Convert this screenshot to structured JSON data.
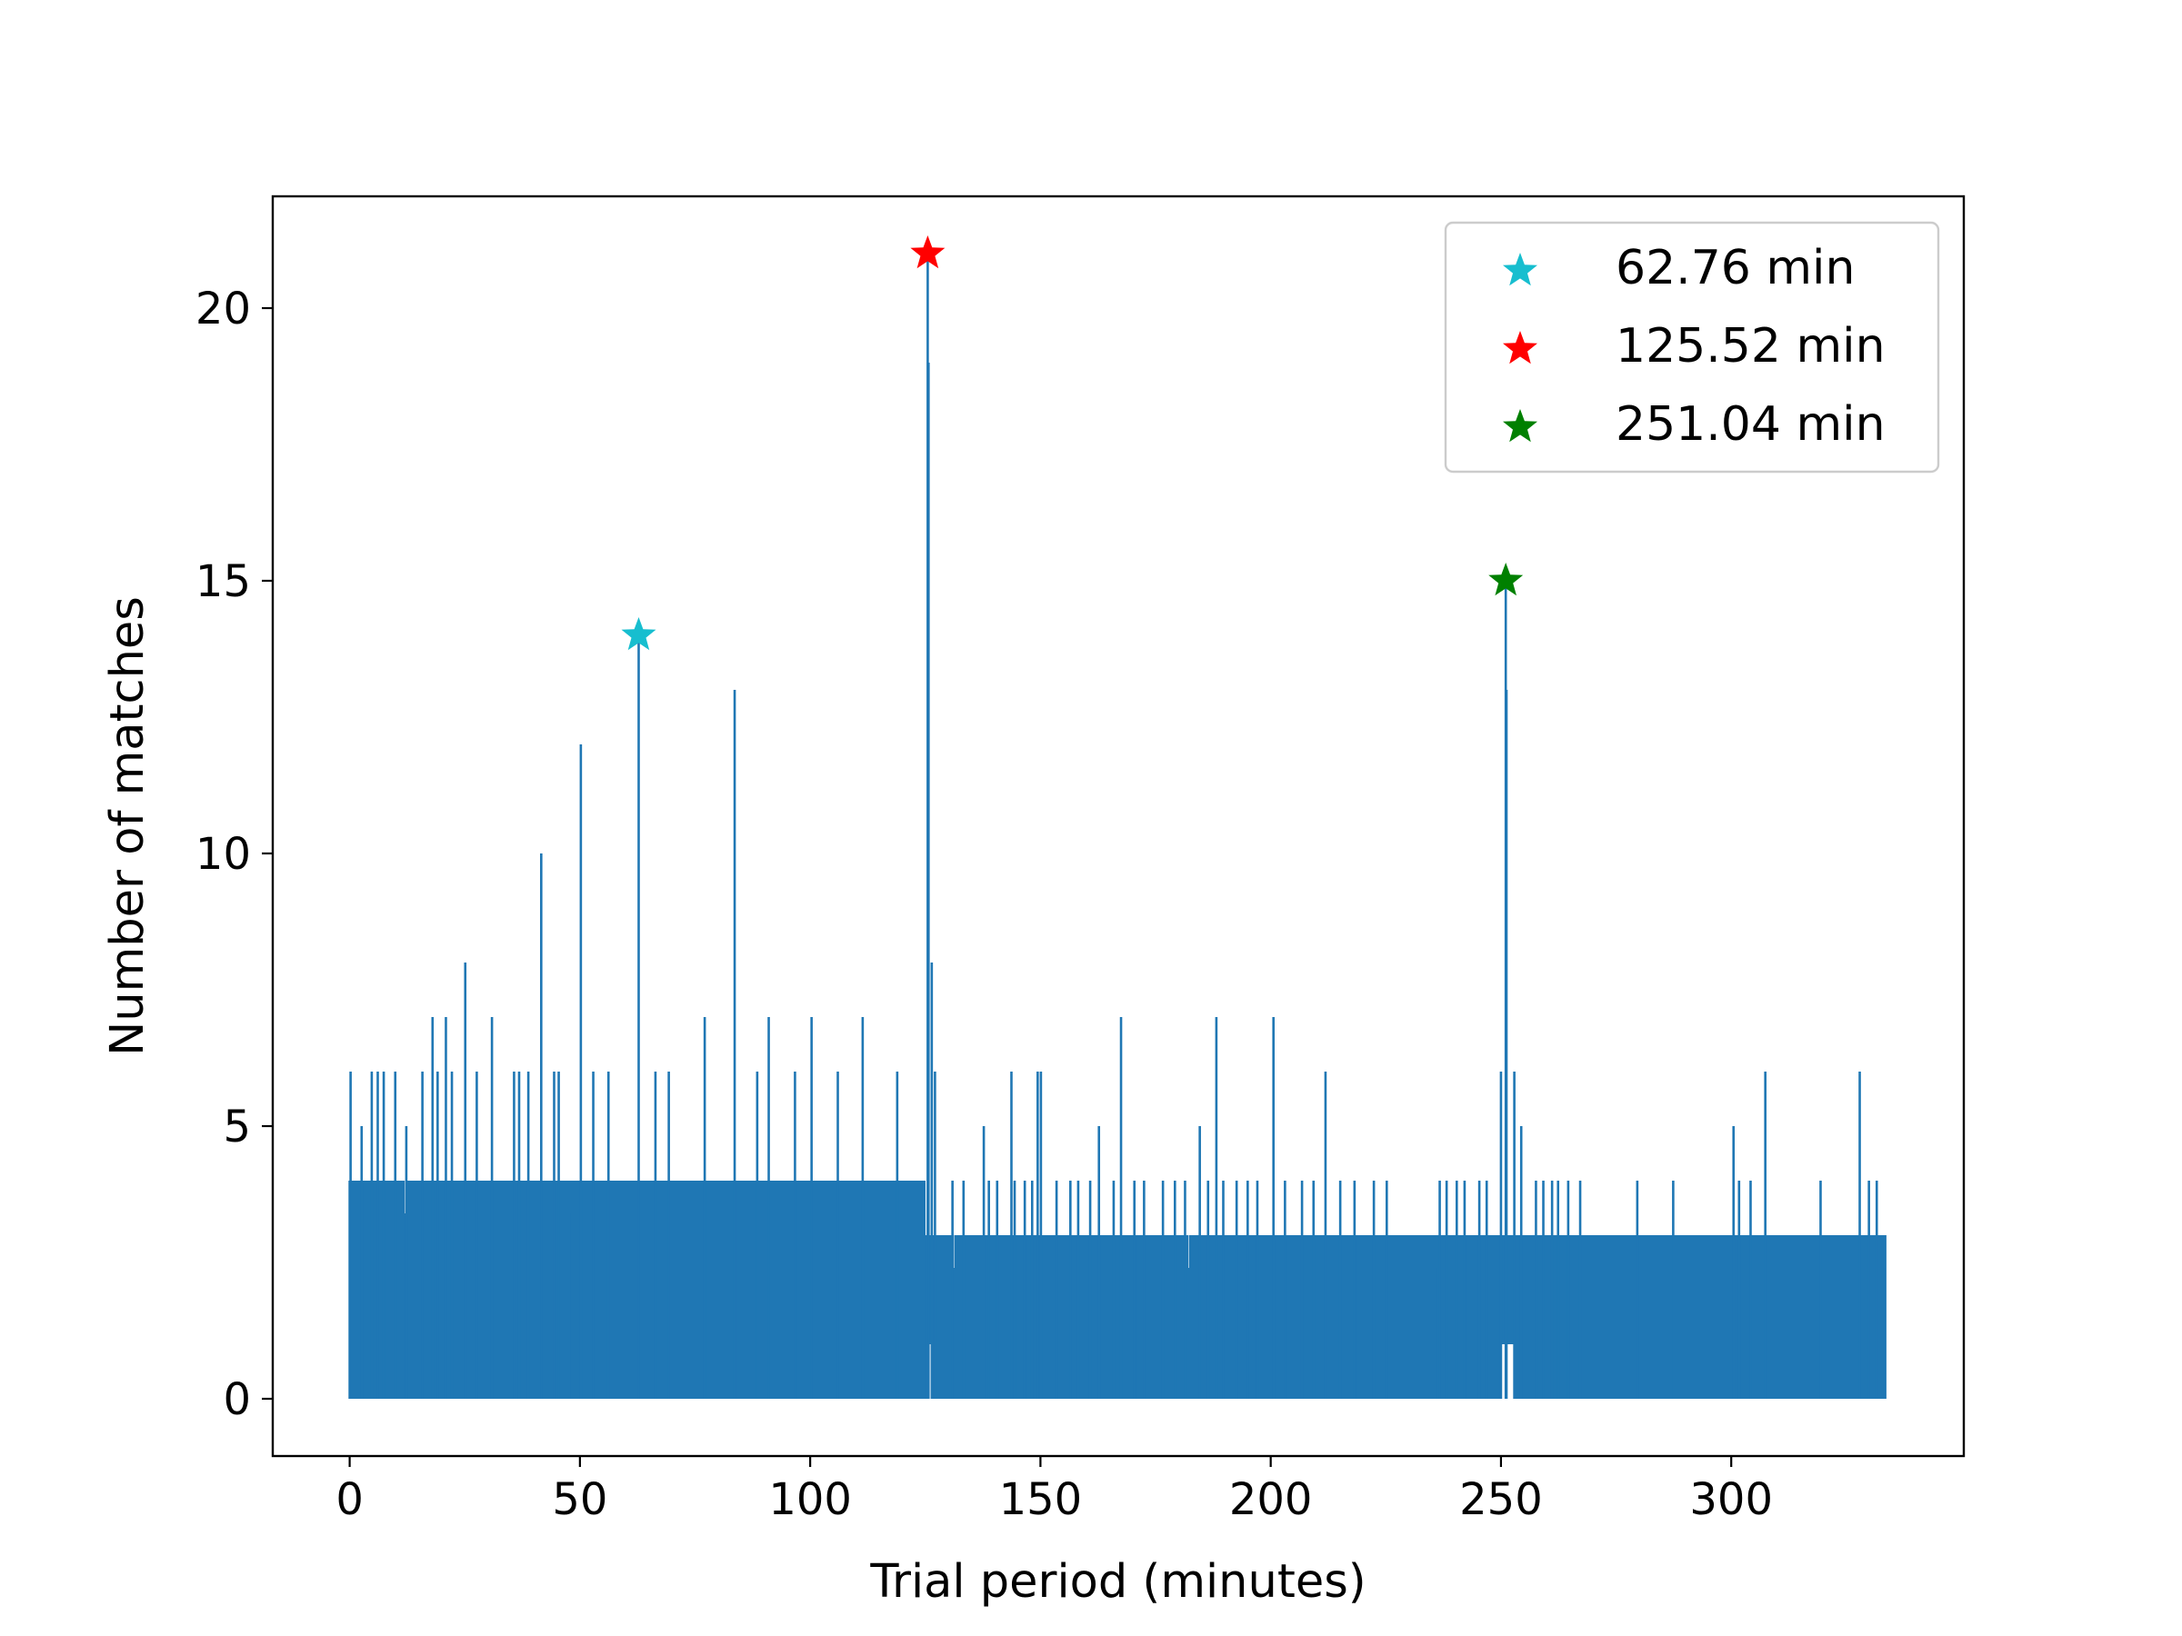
{
  "chart_data": {
    "type": "line",
    "xlabel": "Trial period (minutes)",
    "ylabel": "Number of matches",
    "xlim": [
      -16.7,
      350.5
    ],
    "ylim": [
      -1.05,
      22.05
    ],
    "xticks": [
      0,
      50,
      100,
      150,
      200,
      250,
      300
    ],
    "yticks": [
      0,
      5,
      10,
      15,
      20
    ],
    "grid": false,
    "line_color": "#1f77b4",
    "x_range": [
      0,
      333.5
    ],
    "baseline_band": {
      "description_ranges": [
        {
          "from": 0,
          "to": 48,
          "max": 4
        },
        {
          "from": 48,
          "to": 125,
          "max": 4
        },
        {
          "from": 125,
          "to": 236,
          "max": 3
        },
        {
          "from": 236,
          "to": 333.5,
          "max": 3
        }
      ]
    },
    "gaps": [
      {
        "x": [
          125.3,
          126.8
        ],
        "min": 1
      },
      {
        "x": [
          249.6,
          253.2
        ],
        "min": 1
      }
    ],
    "spikes": [
      {
        "x": 0.2,
        "y": 6
      },
      {
        "x": 2.6,
        "y": 5
      },
      {
        "x": 4.8,
        "y": 6
      },
      {
        "x": 6.1,
        "y": 6
      },
      {
        "x": 7.4,
        "y": 6
      },
      {
        "x": 9.9,
        "y": 6
      },
      {
        "x": 12.3,
        "y": 5
      },
      {
        "x": 15.8,
        "y": 6
      },
      {
        "x": 18.0,
        "y": 7
      },
      {
        "x": 19.1,
        "y": 6
      },
      {
        "x": 20.9,
        "y": 7
      },
      {
        "x": 22.2,
        "y": 6
      },
      {
        "x": 25.1,
        "y": 8
      },
      {
        "x": 27.6,
        "y": 6
      },
      {
        "x": 30.9,
        "y": 7
      },
      {
        "x": 35.7,
        "y": 6
      },
      {
        "x": 36.8,
        "y": 6
      },
      {
        "x": 38.8,
        "y": 6
      },
      {
        "x": 41.6,
        "y": 10
      },
      {
        "x": 44.4,
        "y": 6
      },
      {
        "x": 45.4,
        "y": 6
      },
      {
        "x": 50.2,
        "y": 12
      },
      {
        "x": 52.9,
        "y": 6
      },
      {
        "x": 56.2,
        "y": 6
      },
      {
        "x": 62.76,
        "y": 14
      },
      {
        "x": 66.4,
        "y": 6
      },
      {
        "x": 69.3,
        "y": 6
      },
      {
        "x": 77.1,
        "y": 7
      },
      {
        "x": 83.6,
        "y": 13
      },
      {
        "x": 88.5,
        "y": 6
      },
      {
        "x": 91.0,
        "y": 7
      },
      {
        "x": 96.7,
        "y": 6
      },
      {
        "x": 100.3,
        "y": 7
      },
      {
        "x": 106.0,
        "y": 6
      },
      {
        "x": 111.4,
        "y": 7
      },
      {
        "x": 118.9,
        "y": 6
      },
      {
        "x": 125.52,
        "y": 21
      },
      {
        "x": 125.7,
        "y": 19
      },
      {
        "x": 126.4,
        "y": 8
      },
      {
        "x": 127.1,
        "y": 6
      },
      {
        "x": 137.7,
        "y": 5
      },
      {
        "x": 143.7,
        "y": 6
      },
      {
        "x": 149.4,
        "y": 6
      },
      {
        "x": 150.1,
        "y": 6
      },
      {
        "x": 162.7,
        "y": 5
      },
      {
        "x": 167.5,
        "y": 7
      },
      {
        "x": 184.6,
        "y": 5
      },
      {
        "x": 188.2,
        "y": 7
      },
      {
        "x": 200.6,
        "y": 7
      },
      {
        "x": 211.9,
        "y": 6
      },
      {
        "x": 250.0,
        "y": 6
      },
      {
        "x": 251.04,
        "y": 15
      },
      {
        "x": 251.2,
        "y": 13
      },
      {
        "x": 252.9,
        "y": 6
      },
      {
        "x": 254.4,
        "y": 5
      },
      {
        "x": 300.5,
        "y": 5
      },
      {
        "x": 307.4,
        "y": 6
      },
      {
        "x": 327.9,
        "y": 6
      }
    ],
    "minor_spikes_y4": [
      130.9,
      133.3,
      138.8,
      140.6,
      144.4,
      146.6,
      148.2,
      153.5,
      156.5,
      158.2,
      160.8,
      165.9,
      170.4,
      172.5,
      176.6,
      179.2,
      181.4,
      186.4,
      189.7,
      192.6,
      195.0,
      197.1,
      203.1,
      206.8,
      209.3,
      215.1,
      218.2,
      222.4,
      225.2,
      236.7,
      238.2,
      240.4,
      242.1,
      245.3,
      246.9,
      257.6,
      259.2,
      261.1,
      262.4,
      264.6,
      267.2,
      279.6,
      287.4,
      301.7,
      304.2,
      319.4,
      329.9,
      331.6
    ],
    "markers": [
      {
        "x": 62.76,
        "y": 14,
        "color": "#17becf",
        "label": "62.76 min"
      },
      {
        "x": 125.52,
        "y": 21,
        "color": "#ff0000",
        "label": "125.52 min"
      },
      {
        "x": 251.04,
        "y": 15,
        "color": "#008000",
        "label": "251.04 min"
      }
    ],
    "legend_position": "top-right"
  }
}
